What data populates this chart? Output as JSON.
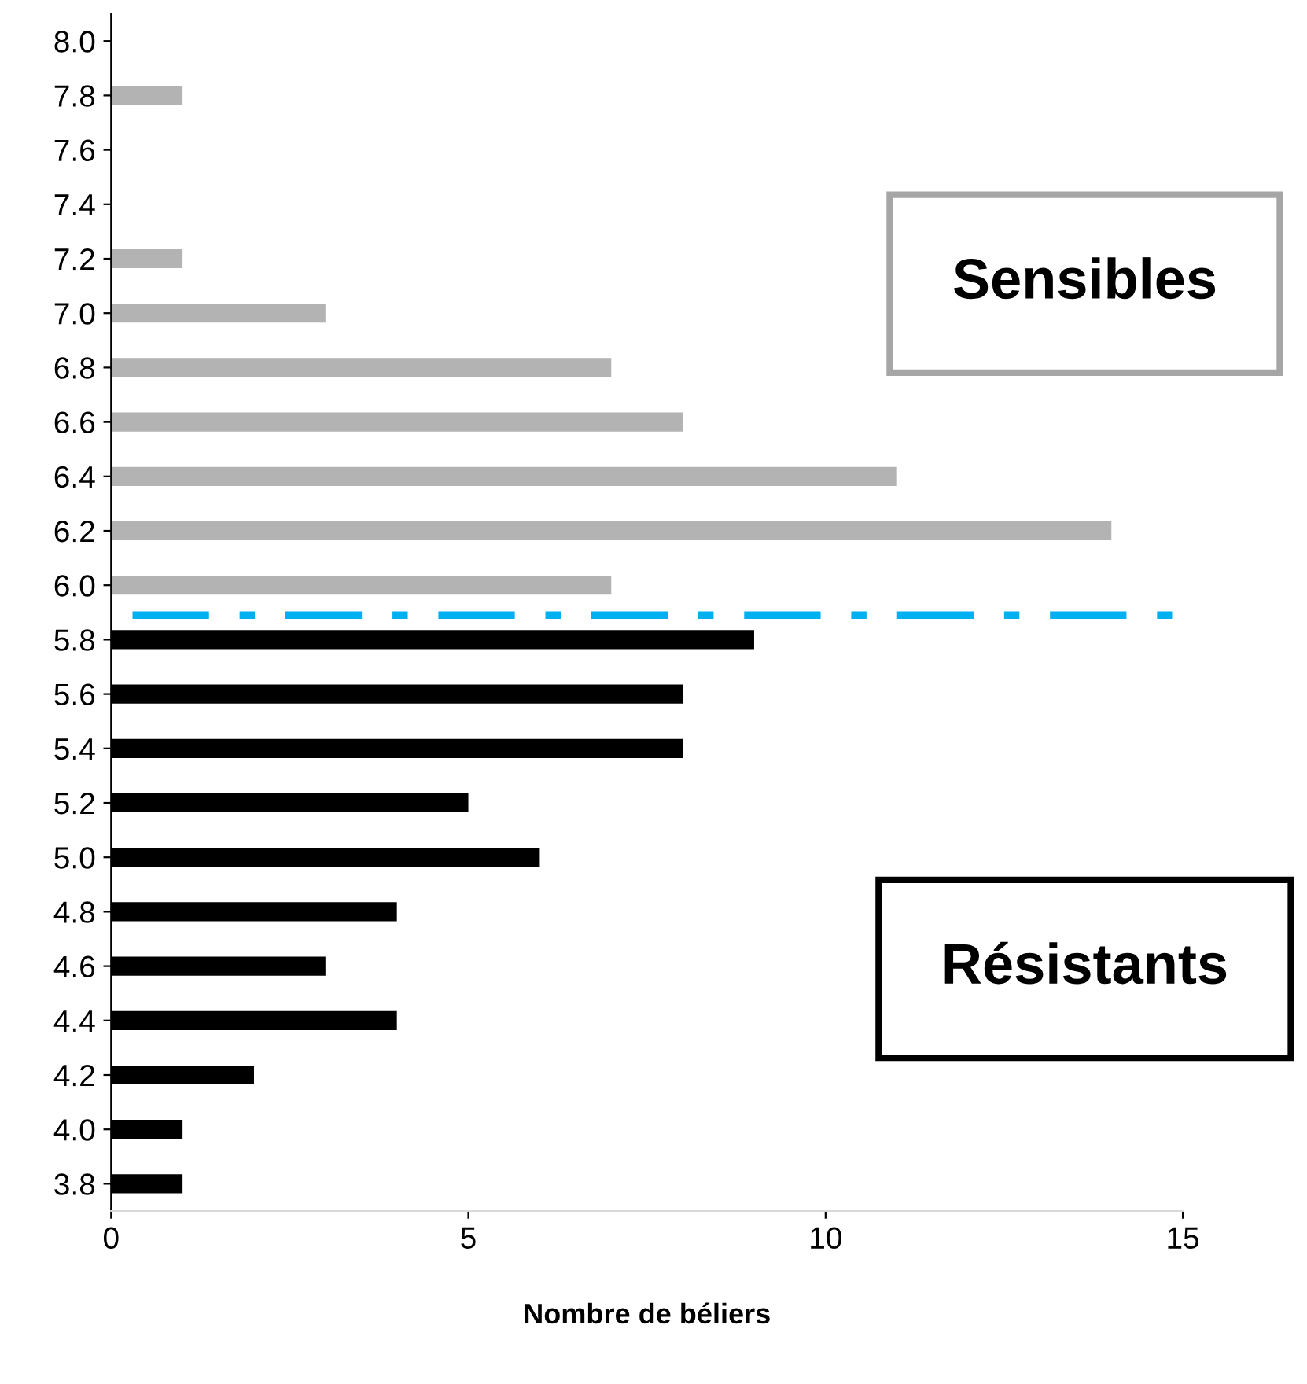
{
  "chart_data": {
    "type": "bar",
    "orientation": "horizontal",
    "xlabel": "Nombre de béliers",
    "x": [
      8.0,
      7.8,
      7.6,
      7.4,
      7.2,
      7.0,
      6.8,
      6.6,
      6.4,
      6.2,
      6.0,
      5.8,
      5.6,
      5.4,
      5.2,
      5.0,
      4.8,
      4.6,
      4.4,
      4.2,
      4.0,
      3.8
    ],
    "values": [
      0,
      1,
      0,
      0,
      1,
      3,
      7,
      8,
      11,
      14,
      7,
      9,
      8,
      8,
      5,
      6,
      4,
      3,
      4,
      2,
      1,
      1
    ],
    "colors": [
      "#b3b3b3",
      "#b3b3b3",
      "#b3b3b3",
      "#b3b3b3",
      "#b3b3b3",
      "#b3b3b3",
      "#b3b3b3",
      "#b3b3b3",
      "#b3b3b3",
      "#b3b3b3",
      "#b3b3b3",
      "#000000",
      "#000000",
      "#000000",
      "#000000",
      "#000000",
      "#000000",
      "#000000",
      "#000000",
      "#000000",
      "#000000",
      "#000000"
    ],
    "xlim": [
      0,
      15
    ],
    "xticks": [
      0,
      5,
      10,
      15
    ],
    "ylim": [
      3.7,
      8.1
    ],
    "yticks": [
      3.8,
      {
        "value": 4.0,
        "label": "4.0"
      },
      4.2,
      4.4,
      4.6,
      4.8,
      {
        "value": 5.0,
        "label": "5.0"
      },
      5.2,
      5.4,
      5.6,
      5.8,
      {
        "value": 6.0,
        "label": "6.0"
      },
      6.2,
      6.4,
      6.6,
      6.8,
      {
        "value": 7.0,
        "label": "7.0"
      },
      7.2,
      7.4,
      7.6,
      7.8,
      {
        "value": 8.0,
        "label": "8.0"
      }
    ],
    "ref_lines": [
      {
        "axis": "y",
        "value": 5.89,
        "color": "#00b0f0",
        "line_style": "dashed"
      }
    ],
    "annotations": [
      "Sensibles",
      "Résistants"
    ],
    "grid": false
  }
}
